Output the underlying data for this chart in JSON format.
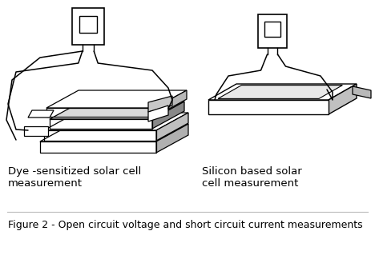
{
  "bg_color": "#ffffff",
  "fig_width": 4.68,
  "fig_height": 3.19,
  "dpi": 100,
  "caption": "Figure 2 - Open circuit voltage and short circuit current measurements",
  "caption_fontsize": 9.0,
  "label_left": "Dye -sensitized solar cell\nmeasurement",
  "label_right": "Silicon based solar\ncell measurement",
  "label_fontsize": 9.5,
  "divider_color": "#bbbbbb"
}
